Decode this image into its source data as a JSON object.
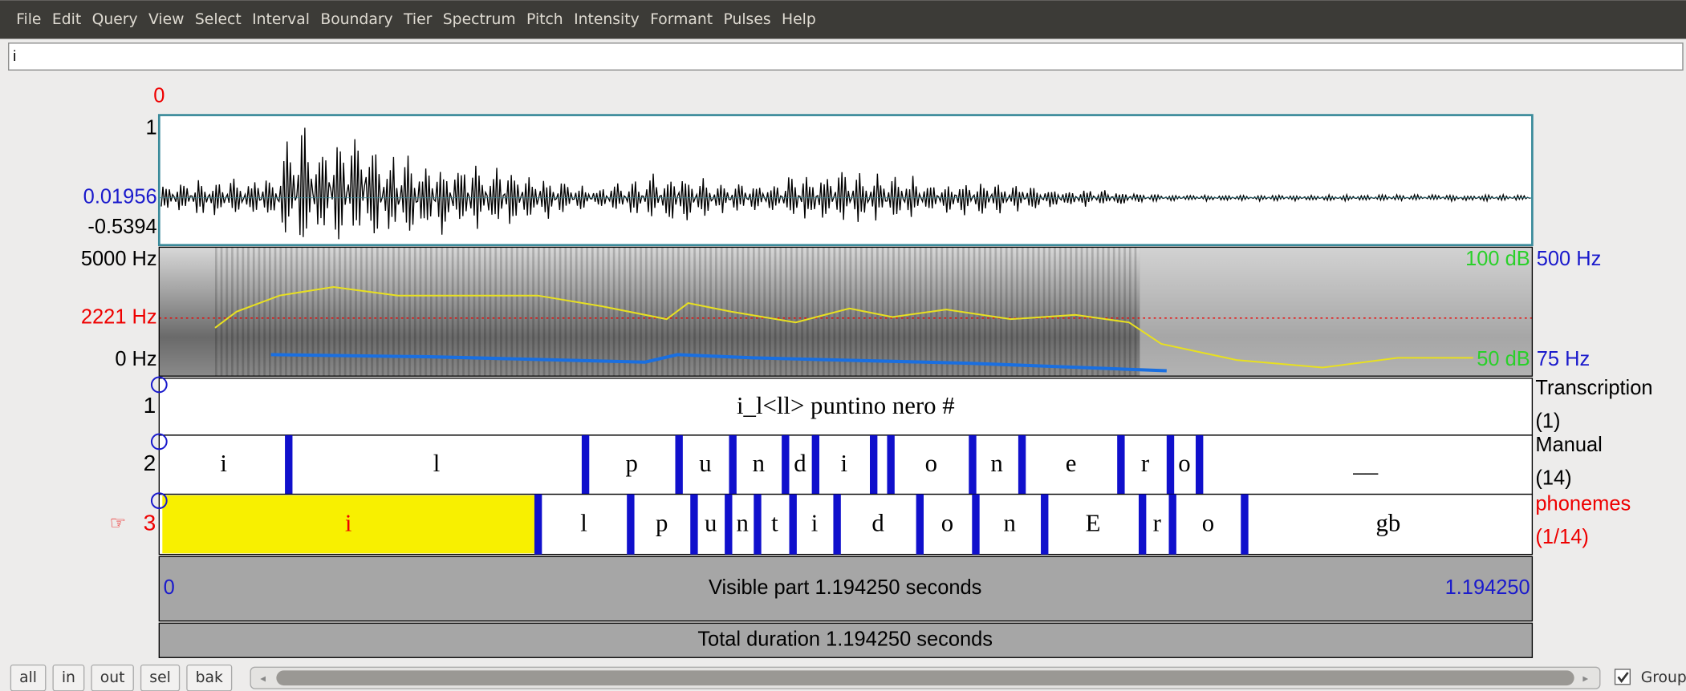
{
  "menu": [
    "File",
    "Edit",
    "Query",
    "View",
    "Select",
    "Interval",
    "Boundary",
    "Tier",
    "Spectrum",
    "Pitch",
    "Intensity",
    "Formant",
    "Pulses",
    "Help"
  ],
  "text_field": "i",
  "waveform": {
    "start_label": "0",
    "top": "1",
    "cursor_value": "0.01956",
    "bottom": "-0.5394"
  },
  "spectrogram": {
    "top": "5000 Hz",
    "cursor": "2221 Hz",
    "bottom": "0 Hz",
    "intensity_top": "100 dB",
    "intensity_bottom": "50 dB",
    "pitch_top": "500 Hz",
    "pitch_bottom": "75 Hz"
  },
  "tiers": [
    {
      "number": "1",
      "name": "Transcription",
      "count": "(1)",
      "intervals": [
        "i_l<ll> puntino nero #"
      ]
    },
    {
      "number": "2",
      "name": "Manual",
      "count": "(14)",
      "intervals": [
        "i",
        "l",
        "p",
        "u",
        "n",
        "d",
        "i",
        null,
        "o",
        "n",
        "e",
        "r",
        "o",
        "__"
      ]
    },
    {
      "number": "3",
      "name": "phonemes",
      "count": "(1/14)",
      "intervals": [
        "i",
        "l",
        "p",
        "u",
        "n",
        "t",
        "i",
        "d",
        "o",
        "n",
        "E",
        "r",
        "o",
        "gb"
      ]
    }
  ],
  "visible": {
    "start": "0",
    "label": "Visible part 1.194250 seconds",
    "end": "1.194250"
  },
  "total": "Total duration 1.194250 seconds",
  "buttons": [
    "all",
    "in",
    "out",
    "sel",
    "bak"
  ],
  "group": "Group"
}
